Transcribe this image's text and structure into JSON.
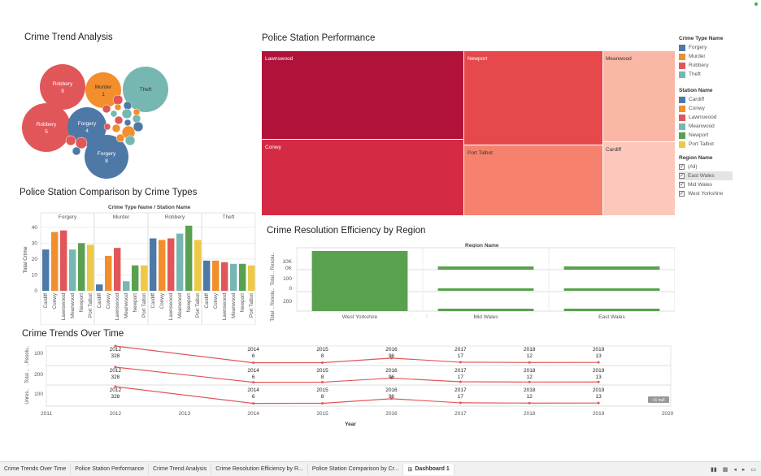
{
  "colors": {
    "crime": {
      "Forgery": "#4e79a7",
      "Murder": "#f28e2b",
      "Robbery": "#e15759",
      "Theft": "#76b7b2"
    },
    "station": {
      "Cardiff": "#4e79a7",
      "Conwy": "#f28e2b",
      "Lawnswood": "#e15759",
      "Meanwood": "#76b7b2",
      "Newport": "#59a14f",
      "Port Talbot": "#edc948"
    },
    "line": "#e15759",
    "region_bar": "#59a14f"
  },
  "crime_trend": {
    "title": "Crime Trend Analysis",
    "bubbles": [
      {
        "label": "Robbery",
        "value": "9",
        "type": "Robbery"
      },
      {
        "label": "Murder",
        "value": "1",
        "type": "Murder"
      },
      {
        "label": "Theft",
        "value": "",
        "type": "Theft"
      },
      {
        "label": "Robbery",
        "value": "5",
        "type": "Robbery"
      },
      {
        "label": "Forgery",
        "value": "4",
        "type": "Forgery"
      },
      {
        "label": "Forgery",
        "value": "8",
        "type": "Forgery"
      }
    ]
  },
  "station_performance": {
    "title": "Police Station Performance",
    "cells": [
      {
        "label": "Lawnswood",
        "color": "#b0123a"
      },
      {
        "label": "Conwy",
        "color": "#d42a44"
      },
      {
        "label": "Newport",
        "color": "#e6484b"
      },
      {
        "label": "Port Talbot",
        "color": "#f6826d"
      },
      {
        "label": "Meanwood",
        "color": "#fbb7a6"
      },
      {
        "label": "Cardiff",
        "color": "#fcc8bb"
      }
    ]
  },
  "legends": {
    "crime_type": {
      "title": "Crime Type Name",
      "items": [
        "Forgery",
        "Murder",
        "Robbery",
        "Theft"
      ]
    },
    "station": {
      "title": "Station Name",
      "items": [
        "Cardiff",
        "Conwy",
        "Lawnswood",
        "Meanwood",
        "Newport",
        "Port Talbot"
      ]
    },
    "region": {
      "title": "Region Name",
      "items": [
        "(All)",
        "East Wales",
        "Mid Wales",
        "West Yorkshire"
      ],
      "checked": [
        true,
        true,
        true,
        true
      ],
      "highlighted": 1
    }
  },
  "comparison": {
    "title": "Police Station Comparison by Crime Types",
    "header": "Crime Type Name  /  Station Name",
    "ylabel": "Total Crime",
    "yticks": [
      "0",
      "10",
      "20",
      "30",
      "40"
    ]
  },
  "resolution": {
    "title": "Crime Resolution Efficiency by Region",
    "header": "Region Name",
    "ylabel1": "Total .. Resolu..",
    "ylabel2": "Total .. Resolu..",
    "row1_ticks": [
      "10K",
      "0K"
    ],
    "row2_ticks": [
      "100",
      "0"
    ],
    "row3_ticks": [
      "200"
    ],
    "regions": [
      "West Yorkshire",
      "Mid Wales",
      "East Wales"
    ],
    "share": [
      1.0,
      0.5,
      0.55
    ]
  },
  "trends": {
    "title": "Crime Trends Over Time",
    "xlabel": "Year",
    "row_labels": [
      "..Resolu..",
      "Total ..",
      "Unres.."
    ],
    "row_ticks": [
      "100",
      "200",
      "100"
    ],
    "years": [
      "2011",
      "2012",
      "2013",
      "2014",
      "2015",
      "2016",
      "2017",
      "2018",
      "2019",
      "2020"
    ],
    "points_years": [
      "2012",
      "2014",
      "2015",
      "2016",
      "2017",
      "2018",
      "2019"
    ],
    "points_values": [
      "328",
      "6",
      "8",
      "96",
      "17",
      "12",
      "13"
    ],
    "null_badge": ">1 null"
  },
  "chart_data": [
    {
      "type": "bar",
      "title": "Police Station Comparison by Crime Types",
      "ylabel": "Total Crime",
      "ylim": [
        0,
        45
      ],
      "groups": [
        "Forgery",
        "Murder",
        "Robbery",
        "Theft"
      ],
      "stations": [
        "Cardiff",
        "Conwy",
        "Lawnswood",
        "Meanwood",
        "Newport",
        "Port Talbot"
      ],
      "series": [
        {
          "name": "Forgery",
          "values": [
            26,
            37,
            38,
            26,
            30,
            29
          ]
        },
        {
          "name": "Murder",
          "values": [
            4,
            22,
            27,
            6,
            16,
            16
          ]
        },
        {
          "name": "Robbery",
          "values": [
            33,
            32,
            33,
            36,
            41,
            32
          ]
        },
        {
          "name": "Theft",
          "values": [
            19,
            19,
            18,
            17,
            17,
            16
          ]
        }
      ]
    },
    {
      "type": "line",
      "title": "Crime Trends Over Time",
      "xlabel": "Year",
      "x": [
        2012,
        2014,
        2015,
        2016,
        2017,
        2018,
        2019
      ],
      "series": [
        {
          "values": [
            328,
            6,
            8,
            96,
            17,
            12,
            13
          ]
        }
      ]
    }
  ]
}
